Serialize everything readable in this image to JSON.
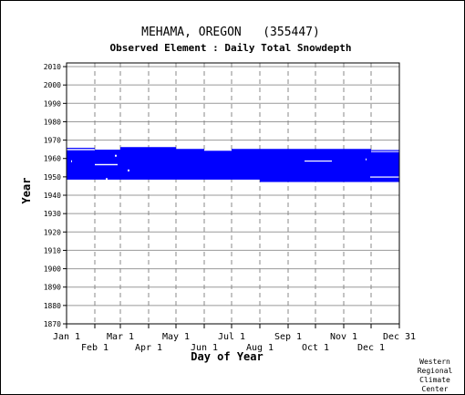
{
  "chart_data": {
    "type": "bar",
    "title": "MEHAMA, OREGON   (355447)",
    "subtitle": "Observed Element : Daily Total Snowdepth",
    "xlabel": "Day of Year",
    "ylabel": "Year",
    "credit": [
      "Western",
      "Regional",
      "Climate",
      "Center"
    ],
    "x_range": [
      1,
      366
    ],
    "ylim": [
      1870,
      2012
    ],
    "grid": true,
    "y_ticks": [
      2010,
      2000,
      1990,
      1980,
      1970,
      1960,
      1950,
      1940,
      1930,
      1920,
      1910,
      1900,
      1890,
      1880,
      1870
    ],
    "x_ticks_upper": [
      {
        "label": "Jan 1",
        "day": 1
      },
      {
        "label": "Mar 1",
        "day": 60
      },
      {
        "label": "May 1",
        "day": 121
      },
      {
        "label": "Jul 1",
        "day": 182
      },
      {
        "label": "Sep 1",
        "day": 244
      },
      {
        "label": "Nov 1",
        "day": 305
      },
      {
        "label": "Dec 31",
        "day": 366
      }
    ],
    "x_ticks_lower": [
      {
        "label": "Feb 1",
        "day": 32
      },
      {
        "label": "Apr 1",
        "day": 91
      },
      {
        "label": "Jun 1",
        "day": 152
      },
      {
        "label": "Aug 1",
        "day": 213
      },
      {
        "label": "Oct 1",
        "day": 274
      },
      {
        "label": "Dec 1",
        "day": 335
      }
    ],
    "series": [
      {
        "color": "#0000ff",
        "segments": [
          {
            "day_start": 1,
            "day_end": 32,
            "year_start": 1948.5,
            "year_end": 1964.5
          },
          {
            "day_start": 1,
            "day_end": 32,
            "year_start": 1965.2,
            "year_end": 1965.8
          },
          {
            "day_start": 32,
            "day_end": 60,
            "year_start": 1948.5,
            "year_end": 1964.8
          },
          {
            "day_start": 60,
            "day_end": 121,
            "year_start": 1948.5,
            "year_end": 1966.2
          },
          {
            "day_start": 121,
            "day_end": 152,
            "year_start": 1948.5,
            "year_end": 1965.2
          },
          {
            "day_start": 152,
            "day_end": 182,
            "year_start": 1948.5,
            "year_end": 1964.2
          },
          {
            "day_start": 182,
            "day_end": 213,
            "year_start": 1948.5,
            "year_end": 1965.2
          },
          {
            "day_start": 213,
            "day_end": 335,
            "year_start": 1947.2,
            "year_end": 1965.2
          },
          {
            "day_start": 335,
            "day_end": 366,
            "year_start": 1947.2,
            "year_end": 1963.5
          },
          {
            "day_start": 335,
            "day_end": 366,
            "year_start": 1964.0,
            "year_end": 1964.6
          }
        ],
        "gaps": [
          {
            "day_start": 32,
            "day_end": 57,
            "year_start": 1956.3,
            "year_end": 1957.0
          },
          {
            "day_start": 262,
            "day_end": 292,
            "year_start": 1958.3,
            "year_end": 1958.9
          },
          {
            "day_start": 334,
            "day_end": 366,
            "year_start": 1949.6,
            "year_end": 1950.2
          },
          {
            "day_start": 54,
            "day_end": 56,
            "year_start": 1961.0,
            "year_end": 1962.0
          },
          {
            "day_start": 68,
            "day_end": 70,
            "year_start": 1953.0,
            "year_end": 1954.0
          },
          {
            "day_start": 329,
            "day_end": 330,
            "year_start": 1959.0,
            "year_end": 1960.0
          },
          {
            "day_start": 6,
            "day_end": 7,
            "year_start": 1958.0,
            "year_end": 1959.0
          },
          {
            "day_start": 44,
            "day_end": 46,
            "year_start": 1948.5,
            "year_end": 1949.3
          }
        ]
      }
    ]
  }
}
